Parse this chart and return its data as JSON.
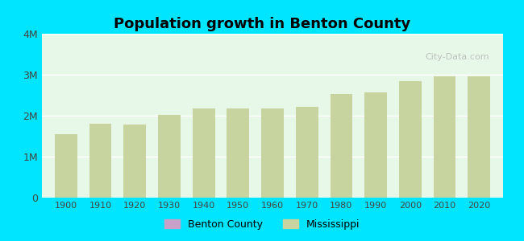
{
  "title": "Population growth in Benton County",
  "years": [
    1900,
    1910,
    1920,
    1930,
    1940,
    1950,
    1960,
    1970,
    1980,
    1990,
    2000,
    2010,
    2020
  ],
  "mississippi_values": [
    1551000,
    1797000,
    1790000,
    2010000,
    2184000,
    2179000,
    2178000,
    2217000,
    2521000,
    2575000,
    2845000,
    2967000,
    2961000
  ],
  "benton_county_values": [
    0,
    0,
    0,
    0,
    0,
    0,
    0,
    0,
    0,
    0,
    0,
    0,
    0
  ],
  "bar_color_ms": "#c8d4a0",
  "bar_color_bc": "#d4a0c8",
  "background_color": "#e8f8e8",
  "outer_background": "#00e5ff",
  "ylim": [
    0,
    4000000
  ],
  "yticks": [
    0,
    1000000,
    2000000,
    3000000,
    4000000
  ],
  "ytick_labels": [
    "0",
    "1M",
    "2M",
    "3M",
    "4M"
  ],
  "legend_bc_color": "#c8a0c8",
  "legend_ms_color": "#c8d4a0",
  "watermark": "City-Data.com"
}
